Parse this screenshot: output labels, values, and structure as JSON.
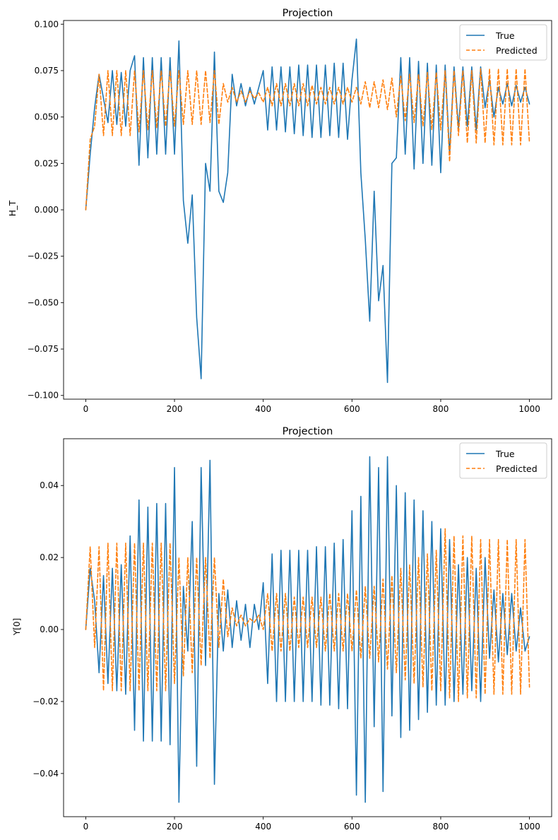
{
  "chart_data": [
    {
      "type": "line",
      "title": "Projection",
      "xlabel": "",
      "ylabel": "H_T",
      "xlim": [
        -50,
        1050
      ],
      "ylim": [
        -0.102,
        0.102
      ],
      "xticks": [
        0,
        200,
        400,
        600,
        800,
        1000
      ],
      "yticks": [
        -0.1,
        -0.075,
        -0.05,
        -0.025,
        0.0,
        0.025,
        0.05,
        0.075,
        0.1
      ],
      "ytick_labels": [
        "−0.100",
        "−0.075",
        "−0.050",
        "−0.025",
        "0.000",
        "0.025",
        "0.050",
        "0.075",
        "0.100"
      ],
      "xtick_labels": [
        "0",
        "200",
        "400",
        "600",
        "800",
        "1000"
      ],
      "legend_position": "top-right",
      "series": [
        {
          "name": "True",
          "color": "#1f77b4",
          "style": "solid",
          "x": [
            0,
            10,
            20,
            30,
            40,
            50,
            60,
            70,
            80,
            90,
            100,
            110,
            120,
            130,
            140,
            150,
            160,
            170,
            180,
            190,
            200,
            210,
            220,
            230,
            240,
            250,
            260,
            270,
            280,
            290,
            300,
            310,
            320,
            330,
            340,
            350,
            360,
            370,
            380,
            390,
            400,
            410,
            420,
            430,
            440,
            450,
            460,
            470,
            480,
            490,
            500,
            510,
            520,
            530,
            540,
            550,
            560,
            570,
            580,
            590,
            600,
            610,
            620,
            630,
            640,
            650,
            660,
            670,
            680,
            690,
            700,
            710,
            720,
            730,
            740,
            750,
            760,
            770,
            780,
            790,
            800,
            810,
            820,
            830,
            840,
            850,
            860,
            870,
            880,
            890,
            900,
            910,
            920,
            930,
            940,
            950,
            960,
            970,
            980,
            990,
            1000
          ],
          "y": [
            0.0,
            0.03,
            0.055,
            0.073,
            0.06,
            0.047,
            0.075,
            0.046,
            0.074,
            0.045,
            0.075,
            0.083,
            0.024,
            0.082,
            0.028,
            0.082,
            0.03,
            0.082,
            0.03,
            0.082,
            0.03,
            0.091,
            0.005,
            -0.018,
            0.008,
            -0.058,
            -0.091,
            0.025,
            0.01,
            0.085,
            0.01,
            0.004,
            0.02,
            0.073,
            0.056,
            0.068,
            0.056,
            0.066,
            0.057,
            0.066,
            0.075,
            0.043,
            0.077,
            0.043,
            0.077,
            0.042,
            0.077,
            0.041,
            0.078,
            0.04,
            0.078,
            0.039,
            0.078,
            0.039,
            0.078,
            0.04,
            0.079,
            0.039,
            0.079,
            0.038,
            0.07,
            0.092,
            0.02,
            -0.016,
            -0.06,
            0.01,
            -0.049,
            -0.03,
            -0.093,
            0.025,
            0.028,
            0.082,
            0.03,
            0.082,
            0.022,
            0.08,
            0.025,
            0.079,
            0.024,
            0.078,
            0.02,
            0.078,
            0.03,
            0.077,
            0.044,
            0.077,
            0.045,
            0.077,
            0.043,
            0.077,
            0.055,
            0.07,
            0.05,
            0.066,
            0.057,
            0.068,
            0.056,
            0.067,
            0.058,
            0.066,
            0.057
          ]
        },
        {
          "name": "Predicted",
          "color": "#ff7f0e",
          "style": "dashed",
          "x": [
            0,
            10,
            20,
            30,
            40,
            50,
            60,
            70,
            80,
            90,
            100,
            110,
            120,
            130,
            140,
            150,
            160,
            170,
            180,
            190,
            200,
            210,
            220,
            230,
            240,
            250,
            260,
            270,
            280,
            290,
            300,
            310,
            320,
            330,
            340,
            350,
            360,
            370,
            380,
            390,
            400,
            410,
            420,
            430,
            440,
            450,
            460,
            470,
            480,
            490,
            500,
            510,
            520,
            530,
            540,
            550,
            560,
            570,
            580,
            590,
            600,
            610,
            620,
            630,
            640,
            650,
            660,
            670,
            680,
            690,
            700,
            710,
            720,
            730,
            740,
            750,
            760,
            770,
            780,
            790,
            800,
            810,
            820,
            830,
            840,
            850,
            860,
            870,
            880,
            890,
            900,
            910,
            920,
            930,
            940,
            950,
            960,
            970,
            980,
            990,
            1000
          ],
          "y": [
            0.0,
            0.038,
            0.045,
            0.073,
            0.04,
            0.075,
            0.04,
            0.075,
            0.04,
            0.075,
            0.04,
            0.075,
            0.042,
            0.075,
            0.043,
            0.075,
            0.044,
            0.075,
            0.045,
            0.075,
            0.045,
            0.075,
            0.046,
            0.075,
            0.046,
            0.075,
            0.046,
            0.075,
            0.047,
            0.075,
            0.046,
            0.068,
            0.058,
            0.066,
            0.058,
            0.064,
            0.058,
            0.064,
            0.06,
            0.063,
            0.058,
            0.066,
            0.056,
            0.068,
            0.056,
            0.068,
            0.056,
            0.068,
            0.056,
            0.068,
            0.056,
            0.067,
            0.057,
            0.066,
            0.057,
            0.066,
            0.057,
            0.066,
            0.057,
            0.066,
            0.058,
            0.066,
            0.057,
            0.069,
            0.055,
            0.069,
            0.055,
            0.07,
            0.054,
            0.071,
            0.05,
            0.072,
            0.048,
            0.073,
            0.047,
            0.073,
            0.045,
            0.074,
            0.043,
            0.074,
            0.043,
            0.075,
            0.026,
            0.075,
            0.04,
            0.075,
            0.036,
            0.075,
            0.036,
            0.076,
            0.036,
            0.076,
            0.035,
            0.076,
            0.035,
            0.076,
            0.035,
            0.076,
            0.035,
            0.076,
            0.036
          ]
        }
      ]
    },
    {
      "type": "line",
      "title": "Projection",
      "xlabel": "",
      "ylabel": "Y[0]",
      "xlim": [
        -50,
        1050
      ],
      "ylim": [
        -0.052,
        0.053
      ],
      "xticks": [
        0,
        200,
        400,
        600,
        800,
        1000
      ],
      "yticks": [
        -0.04,
        -0.02,
        0.0,
        0.02,
        0.04
      ],
      "ytick_labels": [
        "−0.04",
        "−0.02",
        "0.00",
        "0.02",
        "0.04"
      ],
      "xtick_labels": [
        "0",
        "200",
        "400",
        "600",
        "800",
        "1000"
      ],
      "legend_position": "top-right",
      "series": [
        {
          "name": "True",
          "color": "#1f77b4",
          "style": "solid",
          "x": [
            0,
            10,
            20,
            30,
            40,
            50,
            60,
            70,
            80,
            90,
            100,
            110,
            120,
            130,
            140,
            150,
            160,
            170,
            180,
            190,
            200,
            210,
            220,
            230,
            240,
            250,
            260,
            270,
            280,
            290,
            300,
            310,
            320,
            330,
            340,
            350,
            360,
            370,
            380,
            390,
            400,
            410,
            420,
            430,
            440,
            450,
            460,
            470,
            480,
            490,
            500,
            510,
            520,
            530,
            540,
            550,
            560,
            570,
            580,
            590,
            600,
            610,
            620,
            630,
            640,
            650,
            660,
            670,
            680,
            690,
            700,
            710,
            720,
            730,
            740,
            750,
            760,
            770,
            780,
            790,
            800,
            810,
            820,
            830,
            840,
            850,
            860,
            870,
            880,
            890,
            900,
            910,
            920,
            930,
            940,
            950,
            960,
            970,
            980,
            990,
            1000
          ],
          "y": [
            0.0,
            0.017,
            0.008,
            -0.012,
            0.015,
            -0.015,
            0.017,
            -0.017,
            0.018,
            -0.018,
            0.026,
            -0.028,
            0.036,
            -0.031,
            0.034,
            -0.031,
            0.035,
            -0.031,
            0.035,
            -0.032,
            0.045,
            -0.048,
            0.012,
            -0.006,
            0.03,
            -0.038,
            0.045,
            -0.01,
            0.047,
            -0.043,
            0.01,
            -0.006,
            0.011,
            -0.005,
            0.008,
            -0.003,
            0.007,
            -0.005,
            0.007,
            0.0,
            0.013,
            -0.015,
            0.021,
            -0.02,
            0.022,
            -0.02,
            0.022,
            -0.02,
            0.022,
            -0.02,
            0.022,
            -0.02,
            0.023,
            -0.021,
            0.023,
            -0.021,
            0.024,
            -0.022,
            0.025,
            -0.022,
            0.033,
            -0.046,
            0.037,
            -0.048,
            0.048,
            -0.027,
            0.045,
            -0.045,
            0.048,
            -0.024,
            0.04,
            -0.03,
            0.038,
            -0.028,
            0.036,
            -0.025,
            0.033,
            -0.023,
            0.03,
            -0.021,
            0.028,
            -0.021,
            0.025,
            -0.02,
            0.018,
            -0.018,
            0.02,
            -0.017,
            0.017,
            -0.02,
            0.02,
            -0.008,
            0.011,
            -0.009,
            0.01,
            -0.007,
            0.01,
            -0.006,
            0.006,
            -0.006,
            -0.002
          ]
        },
        {
          "name": "Predicted",
          "color": "#ff7f0e",
          "style": "dashed",
          "x": [
            0,
            10,
            20,
            30,
            40,
            50,
            60,
            70,
            80,
            90,
            100,
            110,
            120,
            130,
            140,
            150,
            160,
            170,
            180,
            190,
            200,
            210,
            220,
            230,
            240,
            250,
            260,
            270,
            280,
            290,
            300,
            310,
            320,
            330,
            340,
            350,
            360,
            370,
            380,
            390,
            400,
            410,
            420,
            430,
            440,
            450,
            460,
            470,
            480,
            490,
            500,
            510,
            520,
            530,
            540,
            550,
            560,
            570,
            580,
            590,
            600,
            610,
            620,
            630,
            640,
            650,
            660,
            670,
            680,
            690,
            700,
            710,
            720,
            730,
            740,
            750,
            760,
            770,
            780,
            790,
            800,
            810,
            820,
            830,
            840,
            850,
            860,
            870,
            880,
            890,
            900,
            910,
            920,
            930,
            940,
            950,
            960,
            970,
            980,
            990,
            1000
          ],
          "y": [
            0.0,
            0.023,
            -0.005,
            0.023,
            -0.017,
            0.024,
            -0.017,
            0.024,
            -0.017,
            0.024,
            -0.017,
            0.024,
            -0.017,
            0.024,
            -0.017,
            0.024,
            -0.017,
            0.024,
            -0.017,
            0.024,
            -0.015,
            0.02,
            -0.013,
            0.02,
            -0.012,
            0.02,
            -0.01,
            0.02,
            -0.008,
            0.02,
            -0.005,
            0.014,
            -0.002,
            0.006,
            0.001,
            0.004,
            0.001,
            0.003,
            0.002,
            0.004,
            0.0,
            0.01,
            -0.006,
            0.01,
            -0.006,
            0.01,
            -0.006,
            0.009,
            -0.005,
            0.009,
            -0.005,
            0.009,
            -0.005,
            0.009,
            -0.006,
            0.01,
            -0.006,
            0.01,
            -0.006,
            0.01,
            -0.006,
            0.011,
            -0.008,
            0.012,
            -0.008,
            0.012,
            -0.009,
            0.014,
            -0.011,
            0.015,
            -0.012,
            0.017,
            -0.014,
            0.018,
            -0.015,
            0.02,
            -0.016,
            0.021,
            -0.017,
            0.022,
            -0.017,
            0.028,
            -0.019,
            0.026,
            -0.02,
            0.026,
            -0.019,
            0.026,
            -0.019,
            0.025,
            -0.018,
            0.025,
            -0.018,
            0.025,
            -0.018,
            0.025,
            -0.018,
            0.025,
            -0.018,
            0.025,
            -0.016
          ]
        }
      ]
    }
  ],
  "legend": {
    "entries": [
      "True",
      "Predicted"
    ]
  }
}
